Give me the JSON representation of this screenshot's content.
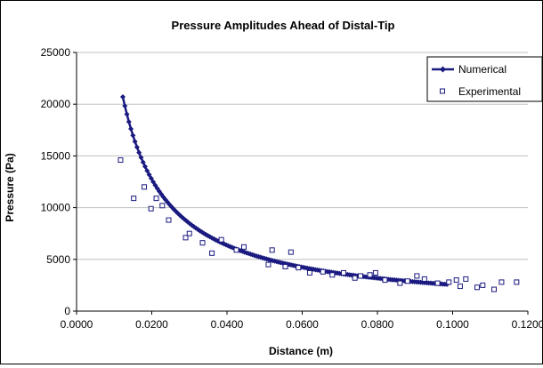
{
  "chart_data": {
    "type": "scatter",
    "title": "Pressure Amplitudes Ahead of Distal-Tip",
    "xlabel": "Distance (m)",
    "ylabel": "Pressure (Pa)",
    "xlim": [
      0,
      0.12
    ],
    "ylim": [
      0,
      25000
    ],
    "x_ticks": [
      "0.0000",
      "0.0200",
      "0.0400",
      "0.0600",
      "0.0800",
      "0.1000",
      "0.1200"
    ],
    "y_ticks": [
      "0",
      "5000",
      "10000",
      "15000",
      "20000",
      "25000"
    ],
    "grid": {
      "horizontal": true,
      "vertical": false
    },
    "legend_placement": "top-right",
    "colors": {
      "numerical": "#1a1a80",
      "experimental": "#1a1a80",
      "grid": "#c0c0c0"
    },
    "series": [
      {
        "name": "Numerical",
        "style": "line-with-diamond-markers",
        "curve": {
          "model": "power-law",
          "a": 0.0123,
          "b": 20700,
          "exponent": -1,
          "x_start": 0.0123,
          "x_end": 0.0985
        }
      },
      {
        "name": "Experimental",
        "style": "hollow-square-markers",
        "points": [
          [
            0.0117,
            14600
          ],
          [
            0.0152,
            10900
          ],
          [
            0.018,
            12000
          ],
          [
            0.0198,
            9900
          ],
          [
            0.0212,
            10900
          ],
          [
            0.0228,
            10200
          ],
          [
            0.0245,
            8800
          ],
          [
            0.029,
            7100
          ],
          [
            0.03,
            7500
          ],
          [
            0.0335,
            6600
          ],
          [
            0.036,
            5600
          ],
          [
            0.0385,
            6900
          ],
          [
            0.0425,
            5900
          ],
          [
            0.0445,
            6200
          ],
          [
            0.051,
            4500
          ],
          [
            0.052,
            5900
          ],
          [
            0.0555,
            4300
          ],
          [
            0.057,
            5700
          ],
          [
            0.059,
            4200
          ],
          [
            0.062,
            3700
          ],
          [
            0.0655,
            3800
          ],
          [
            0.068,
            3500
          ],
          [
            0.071,
            3700
          ],
          [
            0.074,
            3200
          ],
          [
            0.0755,
            3400
          ],
          [
            0.078,
            3500
          ],
          [
            0.0795,
            3700
          ],
          [
            0.082,
            3000
          ],
          [
            0.086,
            2700
          ],
          [
            0.088,
            2900
          ],
          [
            0.0905,
            3400
          ],
          [
            0.0925,
            3100
          ],
          [
            0.096,
            2700
          ],
          [
            0.099,
            2800
          ],
          [
            0.101,
            3000
          ],
          [
            0.102,
            2400
          ],
          [
            0.1035,
            3100
          ],
          [
            0.1065,
            2300
          ],
          [
            0.108,
            2500
          ],
          [
            0.111,
            2100
          ],
          [
            0.113,
            2800
          ],
          [
            0.117,
            2800
          ]
        ]
      }
    ]
  }
}
